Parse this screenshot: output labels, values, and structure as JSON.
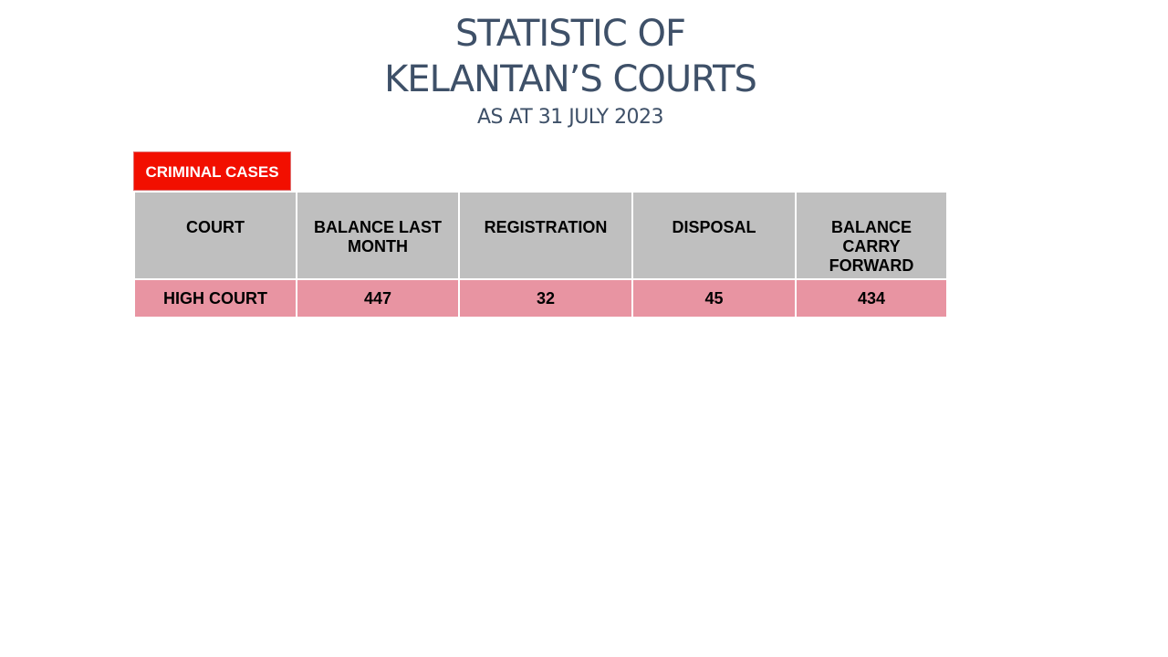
{
  "header": {
    "title_line1": "STATISTIC OF",
    "title_line2": "KELANTAN’S COURTS",
    "subtitle": "AS AT 31 JULY 2023"
  },
  "section": {
    "label": "CRIMINAL CASES"
  },
  "table": {
    "columns": [
      "COURT",
      "BALANCE LAST MONTH",
      "REGISTRATION",
      "DISPOSAL",
      "BALANCE CARRY FORWARD"
    ],
    "rows": [
      [
        "HIGH COURT",
        "447",
        "32",
        "45",
        "434"
      ]
    ]
  }
}
